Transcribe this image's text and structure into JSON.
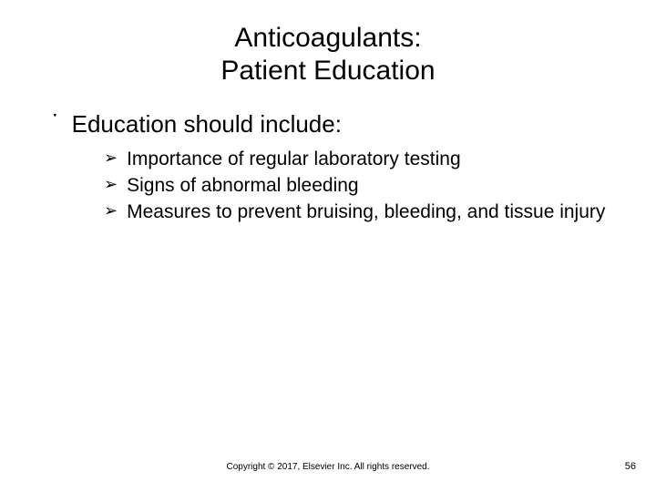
{
  "title_line1": "Anticoagulants:",
  "title_line2": "Patient Education",
  "level1_bullet": "་",
  "level1_text": "Education should include:",
  "level2_bullet": "➢",
  "sub_items": [
    "Importance of regular laboratory testing",
    "Signs of abnormal bleeding",
    "Measures to prevent bruising, bleeding, and tissue injury"
  ],
  "copyright": "Copyright © 2017, Elsevier Inc. All rights reserved.",
  "page_number": "56",
  "colors": {
    "background": "#ffffff",
    "text": "#000000"
  }
}
